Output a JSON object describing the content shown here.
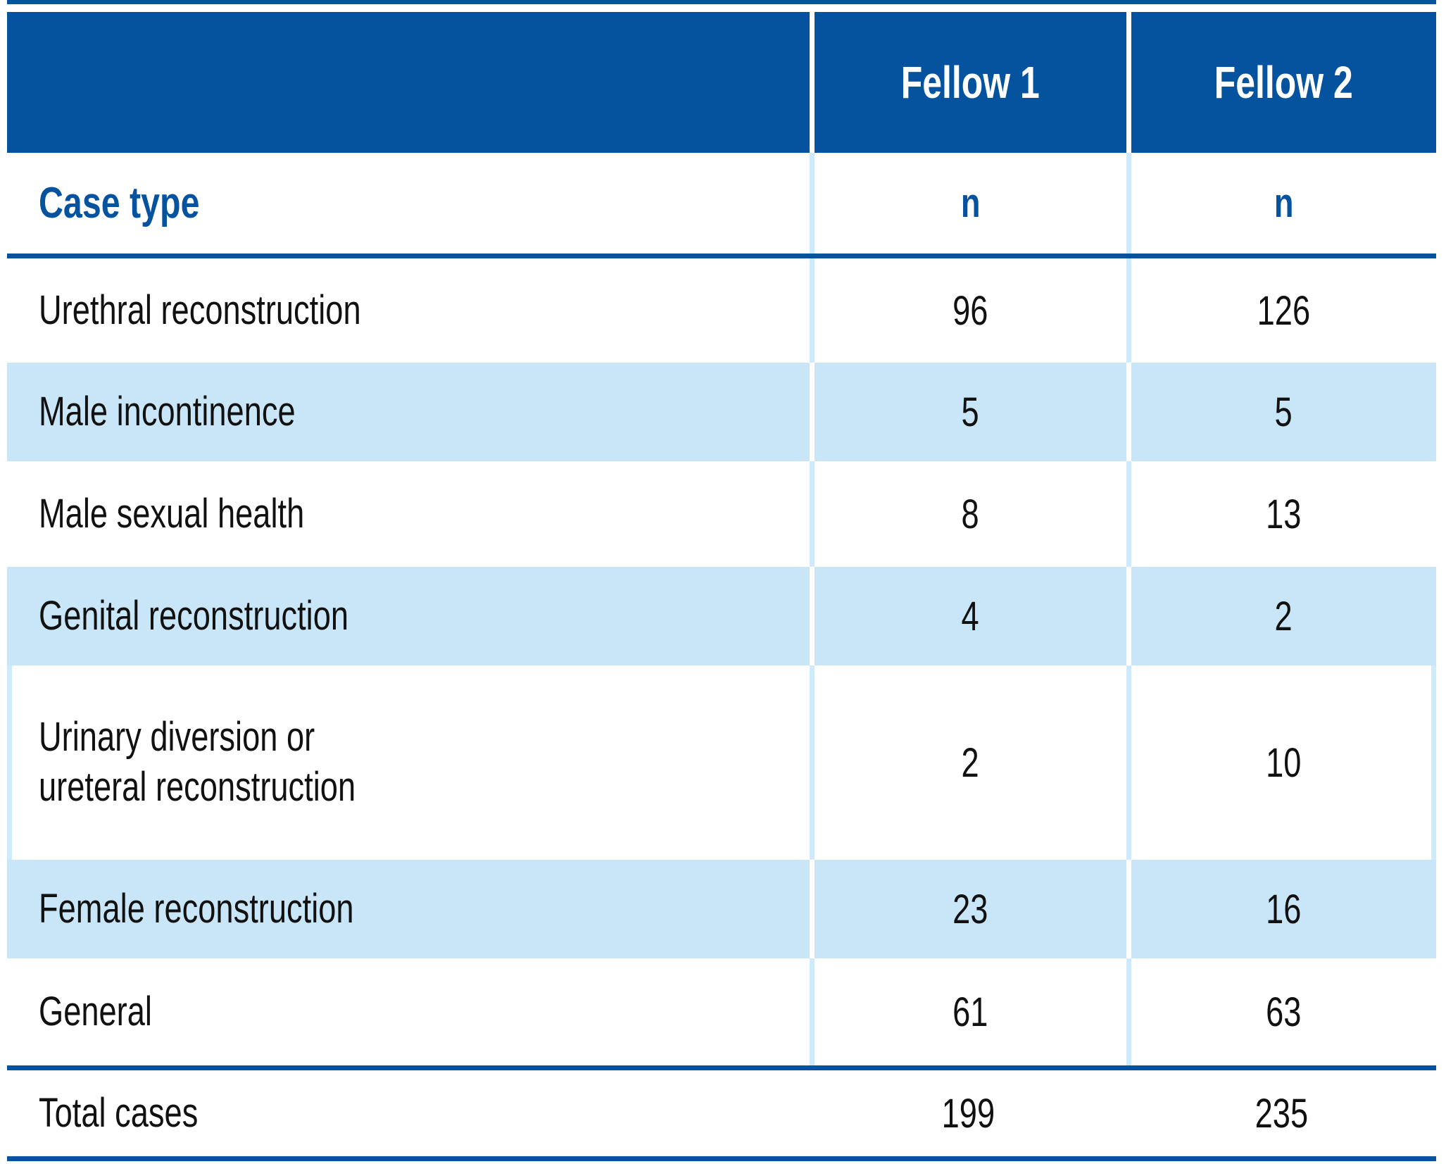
{
  "figure": {
    "header": {
      "fellow1": "Fellow 1",
      "fellow2": "Fellow 2"
    },
    "subheader": {
      "case_type": "Case type",
      "n_fellow1": "n",
      "n_fellow2": "n"
    },
    "rows": [
      {
        "label": "Urethral reconstruction",
        "fellow1": "96",
        "fellow2": "126"
      },
      {
        "label": "Male incontinence",
        "fellow1": "5",
        "fellow2": "5"
      },
      {
        "label": "Male sexual health",
        "fellow1": "8",
        "fellow2": "13"
      },
      {
        "label": "Genital reconstruction",
        "fellow1": "4",
        "fellow2": "2"
      },
      {
        "label": "Urinary diversion or\nureteral reconstruction",
        "fellow1": "2",
        "fellow2": "10"
      },
      {
        "label": "Female reconstruction",
        "fellow1": "23",
        "fellow2": "16"
      },
      {
        "label": "General",
        "fellow1": "61",
        "fellow2": "63"
      }
    ],
    "total": {
      "label": "Total cases",
      "fellow1": "199",
      "fellow2": "235"
    },
    "colors": {
      "header_blue": "#05539e",
      "shaded_row_blue": "#c9e6f8",
      "divider_blue": "#cfeafb",
      "header_text": "#ffffff",
      "body_text": "#111111"
    }
  }
}
